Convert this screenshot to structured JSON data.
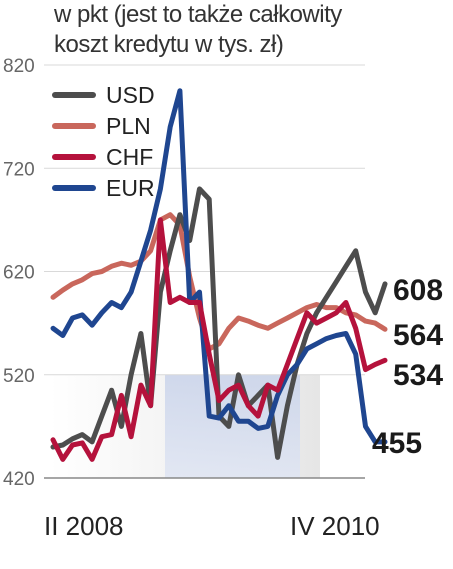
{
  "subtitle_line1": "w pkt (jest to także całkowity",
  "subtitle_line2": "koszt kredytu w tys. zł)",
  "chart_data": {
    "type": "line",
    "title": "",
    "xlabel": "",
    "ylabel": "",
    "ylim": [
      420,
      820
    ],
    "yticks": [
      420,
      520,
      620,
      720,
      820
    ],
    "xticks": [
      "II 2008",
      "IV 2010"
    ],
    "legend_position": "top-left",
    "series": [
      {
        "name": "USD",
        "color": "#4d4d4d",
        "end_label": "608",
        "values": [
          450,
          452,
          458,
          462,
          455,
          480,
          505,
          470,
          520,
          560,
          490,
          600,
          640,
          675,
          650,
          700,
          690,
          480,
          470,
          520,
          490,
          500,
          510,
          440,
          490,
          530,
          560,
          580,
          595,
          610,
          625,
          640,
          600,
          580,
          608
        ]
      },
      {
        "name": "PLN",
        "color": "#c9675c",
        "end_label": "564",
        "values": [
          595,
          602,
          608,
          612,
          618,
          620,
          625,
          628,
          626,
          630,
          640,
          670,
          675,
          665,
          615,
          575,
          545,
          550,
          565,
          575,
          572,
          568,
          565,
          570,
          575,
          580,
          585,
          588,
          585,
          585,
          580,
          578,
          572,
          570,
          564
        ]
      },
      {
        "name": "CHF",
        "color": "#b5123c",
        "end_label": "534",
        "values": [
          457,
          438,
          452,
          454,
          438,
          460,
          462,
          500,
          460,
          510,
          490,
          670,
          590,
          595,
          590,
          590,
          540,
          495,
          505,
          510,
          490,
          480,
          510,
          505,
          530,
          555,
          580,
          570,
          575,
          580,
          590,
          565,
          525,
          530,
          534
        ]
      },
      {
        "name": "EUR",
        "color": "#1f4690",
        "end_label": "455",
        "values": [
          565,
          558,
          575,
          578,
          568,
          580,
          590,
          585,
          600,
          630,
          660,
          700,
          760,
          795,
          590,
          600,
          480,
          478,
          490,
          475,
          475,
          468,
          470,
          500,
          520,
          530,
          545,
          550,
          555,
          558,
          560,
          540,
          470,
          455,
          455
        ]
      }
    ]
  }
}
